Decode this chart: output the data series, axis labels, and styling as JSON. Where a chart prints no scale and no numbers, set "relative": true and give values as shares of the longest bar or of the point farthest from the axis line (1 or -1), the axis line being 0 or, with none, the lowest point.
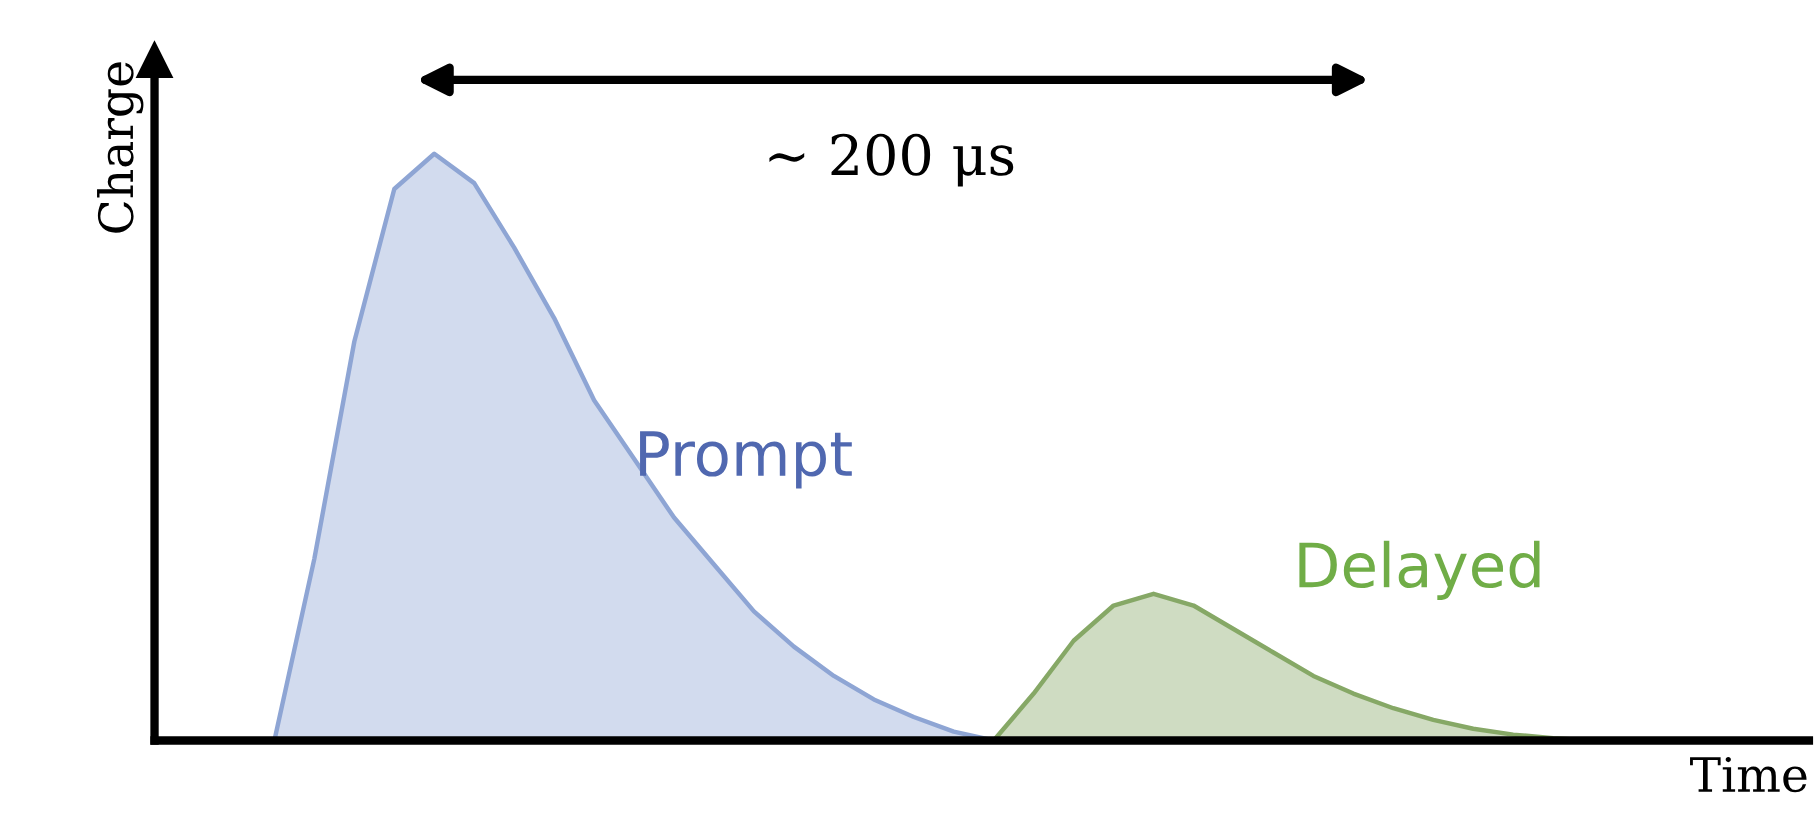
{
  "chart_data": {
    "type": "area",
    "relative": true,
    "xlabel": "Time",
    "ylabel": "Charge",
    "annotations": [
      "∼ 200 μs"
    ],
    "categories": [
      null,
      null,
      null,
      null,
      null,
      null,
      null,
      null,
      null,
      null,
      null,
      null,
      null,
      null,
      null,
      null,
      null,
      null,
      null,
      null,
      null,
      null,
      null,
      null,
      null,
      null,
      null,
      null,
      null,
      null,
      null,
      null,
      null,
      null,
      null,
      null,
      null,
      null,
      null,
      null,
      null,
      null
    ],
    "series": [
      {
        "name": "Prompt",
        "color": "#8ea5d4",
        "values": [
          null,
          null,
          null,
          0,
          0.31,
          0.68,
          0.94,
          1.0,
          0.95,
          0.84,
          0.72,
          0.58,
          0.48,
          0.38,
          0.3,
          0.22,
          0.16,
          0.11,
          0.07,
          0.04,
          0.015,
          0,
          null,
          null,
          null,
          null,
          null,
          null,
          null,
          null,
          null,
          null,
          null,
          null,
          null,
          null,
          null,
          null,
          null,
          null,
          null,
          null
        ]
      },
      {
        "name": "Delayed",
        "color": "#86a866",
        "values": [
          null,
          null,
          null,
          null,
          null,
          null,
          null,
          null,
          null,
          null,
          null,
          null,
          null,
          null,
          null,
          null,
          null,
          null,
          null,
          null,
          null,
          0,
          0.08,
          0.17,
          0.23,
          0.25,
          0.23,
          0.19,
          0.15,
          0.11,
          0.08,
          0.055,
          0.035,
          0.02,
          0.01,
          0.004,
          0,
          null,
          null,
          null,
          null,
          null
        ]
      }
    ]
  }
}
